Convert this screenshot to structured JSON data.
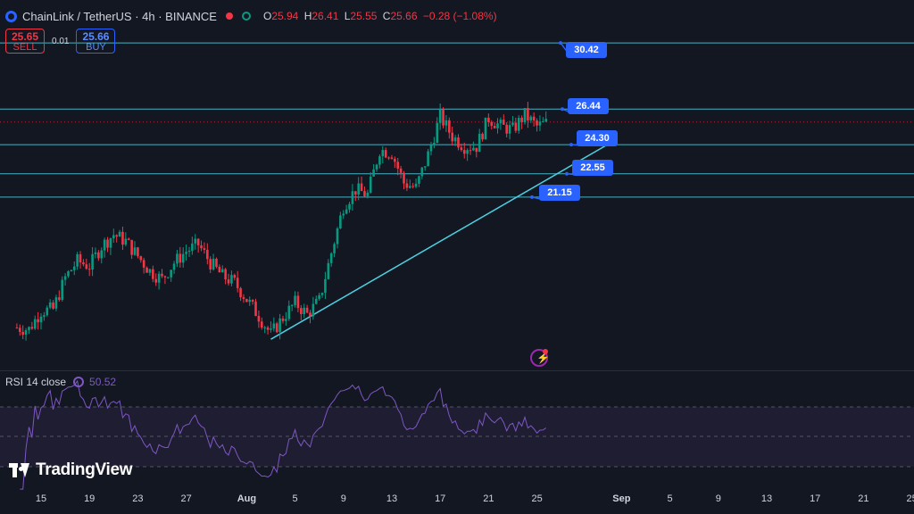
{
  "header": {
    "symbol": "ChainLink / TetherUS · 4h · BINANCE",
    "o_label": "O",
    "o": "25.94",
    "h_label": "H",
    "h": "26.41",
    "l_label": "L",
    "l": "25.55",
    "c_label": "C",
    "c": "25.66",
    "change": "−0.28 (−1.08%)"
  },
  "trade": {
    "sell_price": "25.65",
    "sell_label": "SELL",
    "spread": "0.01",
    "buy_price": "25.66",
    "buy_label": "BUY"
  },
  "rsi": {
    "label": "RSI 14 close",
    "value": "50.52"
  },
  "branding": {
    "logo_text": "TradingView"
  },
  "colors": {
    "background": "#131722",
    "up": "#089981",
    "down": "#f23645",
    "hline": "#4dd0e1",
    "tag": "#2962ff",
    "rsi": "#7e57c2"
  },
  "chart_data": {
    "type": "candlestick",
    "title": "ChainLink / TetherUS · 4h · BINANCE",
    "x_ticks": [
      "15",
      "19",
      "23",
      "27",
      "Aug",
      "5",
      "9",
      "13",
      "17",
      "21",
      "25",
      "Sep",
      "5",
      "9",
      "13",
      "17",
      "21",
      "25"
    ],
    "x_tick_dates": [
      "2024-07-15",
      "2024-07-19",
      "2024-07-23",
      "2024-07-27",
      "2024-08-01",
      "2024-08-05",
      "2024-08-09",
      "2024-08-13",
      "2024-08-17",
      "2024-08-21",
      "2024-08-25",
      "2024-09-01",
      "2024-09-05",
      "2024-09-09",
      "2024-09-13",
      "2024-09-17",
      "2024-09-21",
      "2024-09-25"
    ],
    "horizontal_levels": [
      {
        "price": 30.42,
        "label": "30.42"
      },
      {
        "price": 26.44,
        "label": "26.44"
      },
      {
        "price": 24.3,
        "label": "24.30"
      },
      {
        "price": 22.55,
        "label": "22.55"
      },
      {
        "price": 21.15,
        "label": "21.15"
      }
    ],
    "trendline": {
      "from": {
        "date": "2024-08-03",
        "price": 12.6
      },
      "to": {
        "date": "2024-08-30",
        "price": 24.1
      }
    },
    "current_price": 25.66,
    "ylim": [
      11.0,
      33.0
    ],
    "close_path": [
      [
        "2024-07-13",
        13.3
      ],
      [
        "2024-07-14",
        13.2
      ],
      [
        "2024-07-15",
        14.3
      ],
      [
        "2024-07-16",
        14.4
      ],
      [
        "2024-07-17",
        16.3
      ],
      [
        "2024-07-18",
        17.3
      ],
      [
        "2024-07-19",
        17.0
      ],
      [
        "2024-07-20",
        18.2
      ],
      [
        "2024-07-21",
        18.9
      ],
      [
        "2024-07-22",
        18.5
      ],
      [
        "2024-07-23",
        17.6
      ],
      [
        "2024-07-24",
        16.7
      ],
      [
        "2024-07-25",
        16.2
      ],
      [
        "2024-07-26",
        17.2
      ],
      [
        "2024-07-27",
        17.9
      ],
      [
        "2024-07-28",
        18.3
      ],
      [
        "2024-07-29",
        17.2
      ],
      [
        "2024-07-30",
        16.4
      ],
      [
        "2024-07-31",
        16.0
      ],
      [
        "2024-08-01",
        15.0
      ],
      [
        "2024-08-02",
        14.0
      ],
      [
        "2024-08-03",
        12.9
      ],
      [
        "2024-08-04",
        13.9
      ],
      [
        "2024-08-05",
        14.8
      ],
      [
        "2024-08-06",
        14.1
      ],
      [
        "2024-08-07",
        14.9
      ],
      [
        "2024-08-08",
        17.8
      ],
      [
        "2024-08-09",
        20.6
      ],
      [
        "2024-08-10",
        21.6
      ],
      [
        "2024-08-11",
        21.3
      ],
      [
        "2024-08-12",
        24.0
      ],
      [
        "2024-08-13",
        23.8
      ],
      [
        "2024-08-14",
        22.0
      ],
      [
        "2024-08-15",
        21.7
      ],
      [
        "2024-08-16",
        23.7
      ],
      [
        "2024-08-17",
        26.0
      ],
      [
        "2024-08-18",
        24.8
      ],
      [
        "2024-08-19",
        24.2
      ],
      [
        "2024-08-20",
        24.2
      ],
      [
        "2024-08-21",
        25.9
      ],
      [
        "2024-08-22",
        25.4
      ],
      [
        "2024-08-23",
        25.2
      ],
      [
        "2024-08-24",
        26.1
      ],
      [
        "2024-08-25",
        25.4
      ],
      [
        "2024-08-26",
        25.66
      ]
    ]
  },
  "rsi_data": {
    "levels": [
      70,
      50,
      30
    ],
    "value": 50.52
  }
}
